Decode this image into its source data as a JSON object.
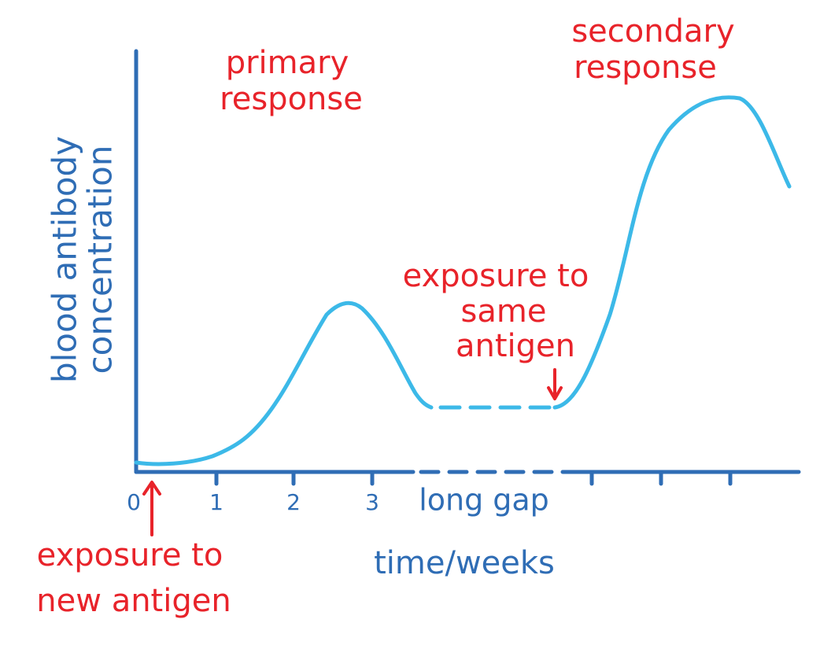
{
  "axes": {
    "y_label": [
      "blood antibody",
      "concentration"
    ],
    "x_label": "time/weeks",
    "x_ticks": [
      "0",
      "1",
      "2",
      "3"
    ],
    "gap_label": "long gap"
  },
  "annotations": {
    "primary": [
      "primary",
      "response"
    ],
    "secondary": [
      "secondary",
      "response"
    ],
    "same_antigen": [
      "exposure to",
      "same",
      "antigen"
    ],
    "new_antigen": [
      "exposure to",
      "new antigen"
    ]
  }
}
